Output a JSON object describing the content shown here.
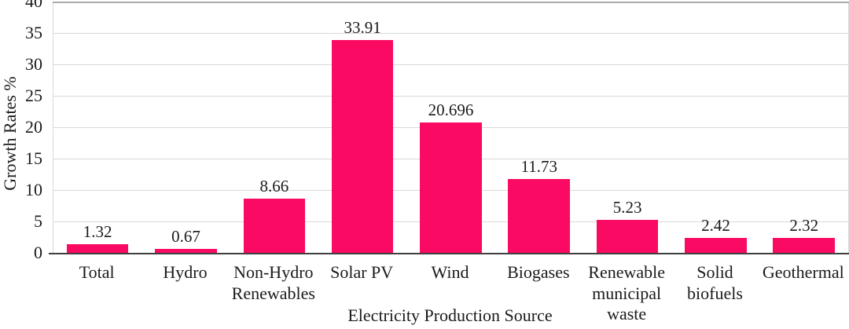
{
  "chart_data": {
    "type": "bar",
    "title": "",
    "xlabel": "Electricity Production Source",
    "ylabel": "Growth Rates %",
    "categories": [
      "Total",
      "Hydro",
      "Non-Hydro\nRenewables",
      "Solar PV",
      "Wind",
      "Biogases",
      "Renewable\nmunicipal\nwaste",
      "Solid\nbiofuels",
      "Geothermal"
    ],
    "values": [
      1.32,
      0.67,
      8.66,
      33.91,
      20.696,
      11.73,
      5.23,
      2.42,
      2.32
    ],
    "value_labels": [
      "1.32",
      "0.67",
      "8.66",
      "33.91",
      "20.696",
      "11.73",
      "5.23",
      "2.42",
      "2.32"
    ],
    "ylim": [
      0,
      40
    ],
    "yticks": [
      0,
      5,
      10,
      15,
      20,
      25,
      30,
      35,
      40
    ],
    "grid": true,
    "legend_position": "none",
    "colors": {
      "bar": "#fa0a62",
      "gridline": "#d9d9d9",
      "plot_top_border": "#ababab",
      "axis_line": "#3f3f3f",
      "text": "#1a1a1a"
    }
  }
}
